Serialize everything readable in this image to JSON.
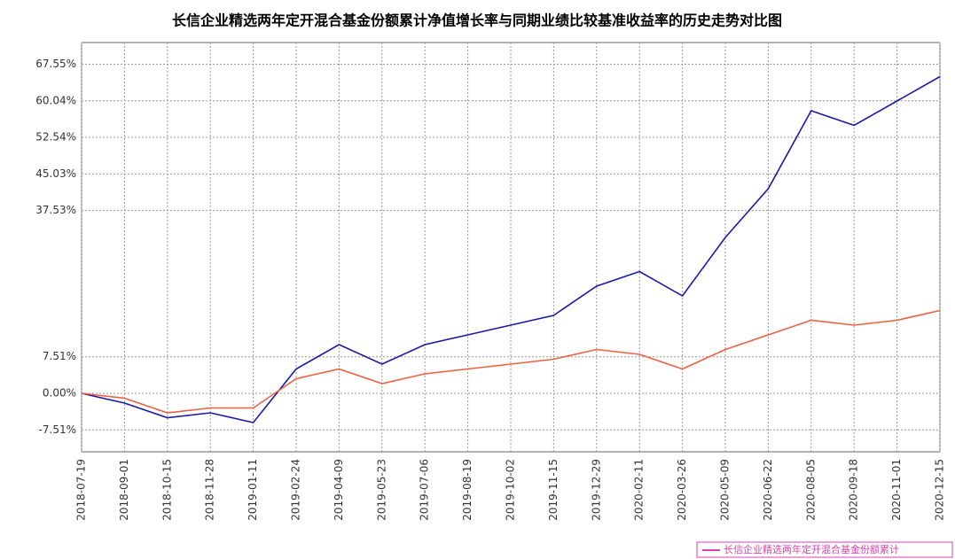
{
  "chart_data": {
    "type": "line",
    "title": "长信企业精选两年定开混合基金份额累计净值增长率与同期业绩比较基准收益率的历史走势对比图",
    "categories": [
      "2018-07-19",
      "2018-09-01",
      "2018-10-15",
      "2018-11-28",
      "2019-01-11",
      "2019-02-24",
      "2019-04-09",
      "2019-05-23",
      "2019-07-06",
      "2019-08-19",
      "2019-10-02",
      "2019-11-15",
      "2019-12-29",
      "2020-02-11",
      "2020-03-26",
      "2020-05-09",
      "2020-06-22",
      "2020-08-05",
      "2020-09-18",
      "2020-11-01",
      "2020-12-15"
    ],
    "series": [
      {
        "name": "长信企业精选两年定开混合基金份额累计",
        "color": "#1a1aa8",
        "values": [
          0,
          -2,
          -5,
          -4,
          -6,
          5,
          10,
          6,
          10,
          12,
          14,
          16,
          22,
          25,
          20,
          32,
          42,
          58,
          55,
          60,
          65
        ]
      },
      {
        "color": "#f06040",
        "values": [
          0,
          -1,
          -4,
          -3,
          -3,
          3,
          5,
          2,
          4,
          5,
          6,
          7,
          9,
          8,
          5,
          9,
          12,
          15,
          14,
          15,
          17
        ]
      }
    ],
    "ylim": [
      -12,
      72
    ],
    "yticks": [
      {
        "value": -7.51,
        "label": "-7.51%"
      },
      {
        "value": 0,
        "label": "0.00%"
      },
      {
        "value": 7.51,
        "label": "7.51%"
      },
      {
        "value": 37.53,
        "label": "37.53%"
      },
      {
        "value": 45.03,
        "label": "45.03%"
      },
      {
        "value": 52.54,
        "label": "52.54%"
      },
      {
        "value": 60.04,
        "label": "60.04%"
      },
      {
        "value": 67.55,
        "label": "67.55%"
      }
    ],
    "grid": true
  }
}
